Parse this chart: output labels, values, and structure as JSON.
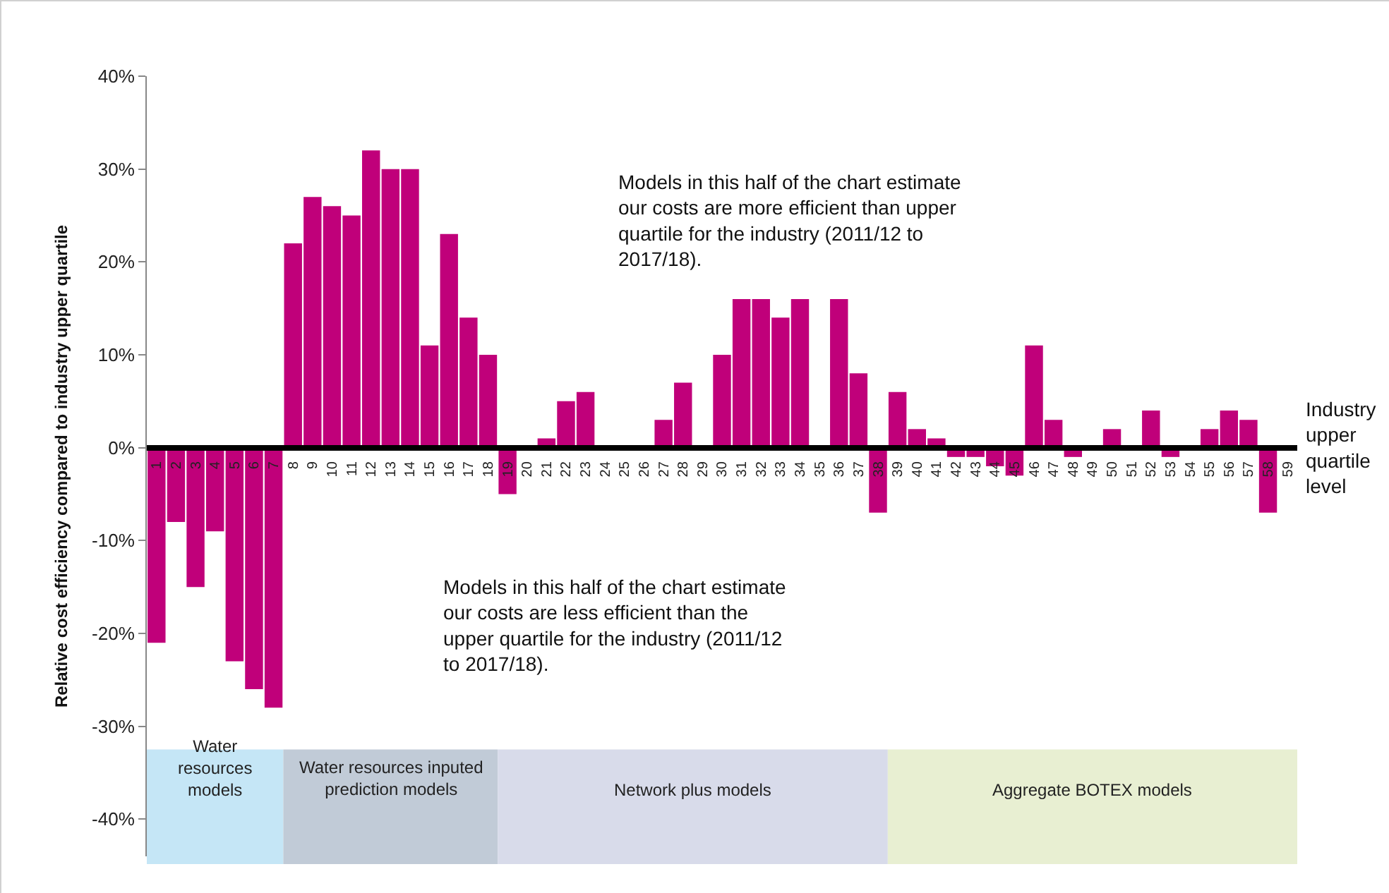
{
  "chart_data": {
    "type": "bar",
    "ylabel": "Relative cost efficiency compared to industry upper quartile",
    "categories": [
      "1",
      "2",
      "3",
      "4",
      "5",
      "6",
      "7",
      "8",
      "9",
      "10",
      "11",
      "12",
      "13",
      "14",
      "15",
      "16",
      "17",
      "18",
      "19",
      "20",
      "21",
      "22",
      "23",
      "24",
      "25",
      "26",
      "27",
      "28",
      "29",
      "30",
      "31",
      "32",
      "33",
      "34",
      "35",
      "36",
      "37",
      "38",
      "39",
      "40",
      "41",
      "42",
      "43",
      "44",
      "45",
      "46",
      "47",
      "48",
      "49",
      "50",
      "51",
      "52",
      "53",
      "54",
      "55",
      "56",
      "57",
      "58",
      "59"
    ],
    "values": [
      -21,
      -8,
      -15,
      -9,
      -23,
      -26,
      -28,
      22,
      27,
      26,
      25,
      32,
      30,
      30,
      11,
      23,
      14,
      10,
      -5,
      0,
      1,
      5,
      6,
      0,
      0,
      0,
      3,
      7,
      0,
      10,
      16,
      16,
      14,
      16,
      0,
      16,
      8,
      -7,
      6,
      2,
      1,
      -1,
      -1,
      -2,
      -3,
      11,
      3,
      -1,
      0,
      2,
      0,
      4,
      -1,
      0,
      2,
      4,
      3,
      -7,
      0
    ],
    "color": "#c0007a",
    "ylim": [
      -44,
      40
    ],
    "yticks": [
      {
        "value": -40,
        "label": "-40%"
      },
      {
        "value": -30,
        "label": "-30%"
      },
      {
        "value": -20,
        "label": "-20%"
      },
      {
        "value": -10,
        "label": "-10%"
      },
      {
        "value": 0,
        "label": "0%"
      },
      {
        "value": 10,
        "label": "10%"
      },
      {
        "value": 20,
        "label": "20%"
      },
      {
        "value": 30,
        "label": "30%"
      },
      {
        "value": 40,
        "label": "40%"
      }
    ],
    "grid": false,
    "legend": false,
    "bands": [
      {
        "axis": "x",
        "from": "1",
        "to": "7",
        "label": "Water resources models",
        "color": "#c5e6f6"
      },
      {
        "axis": "x",
        "from": "8",
        "to": "18",
        "label": "Water resources inputed prediction models",
        "color": "#c1cbd7"
      },
      {
        "axis": "x",
        "from": "19",
        "to": "38",
        "label": "Network plus models",
        "color": "#d8dbea"
      },
      {
        "axis": "x",
        "from": "39",
        "to": "59",
        "label": "Aggregate BOTEX models",
        "color": "#e8efd2"
      }
    ],
    "annotations": [
      "Industry upper quartile level",
      "Models in this half of the chart estimate our costs are more efficient than upper quartile for the industry (2011/12 to 2017/18).",
      "Models in this half of the chart estimate our costs are less efficient than the upper quartile for the industry (2011/12 to 2017/18)."
    ]
  }
}
